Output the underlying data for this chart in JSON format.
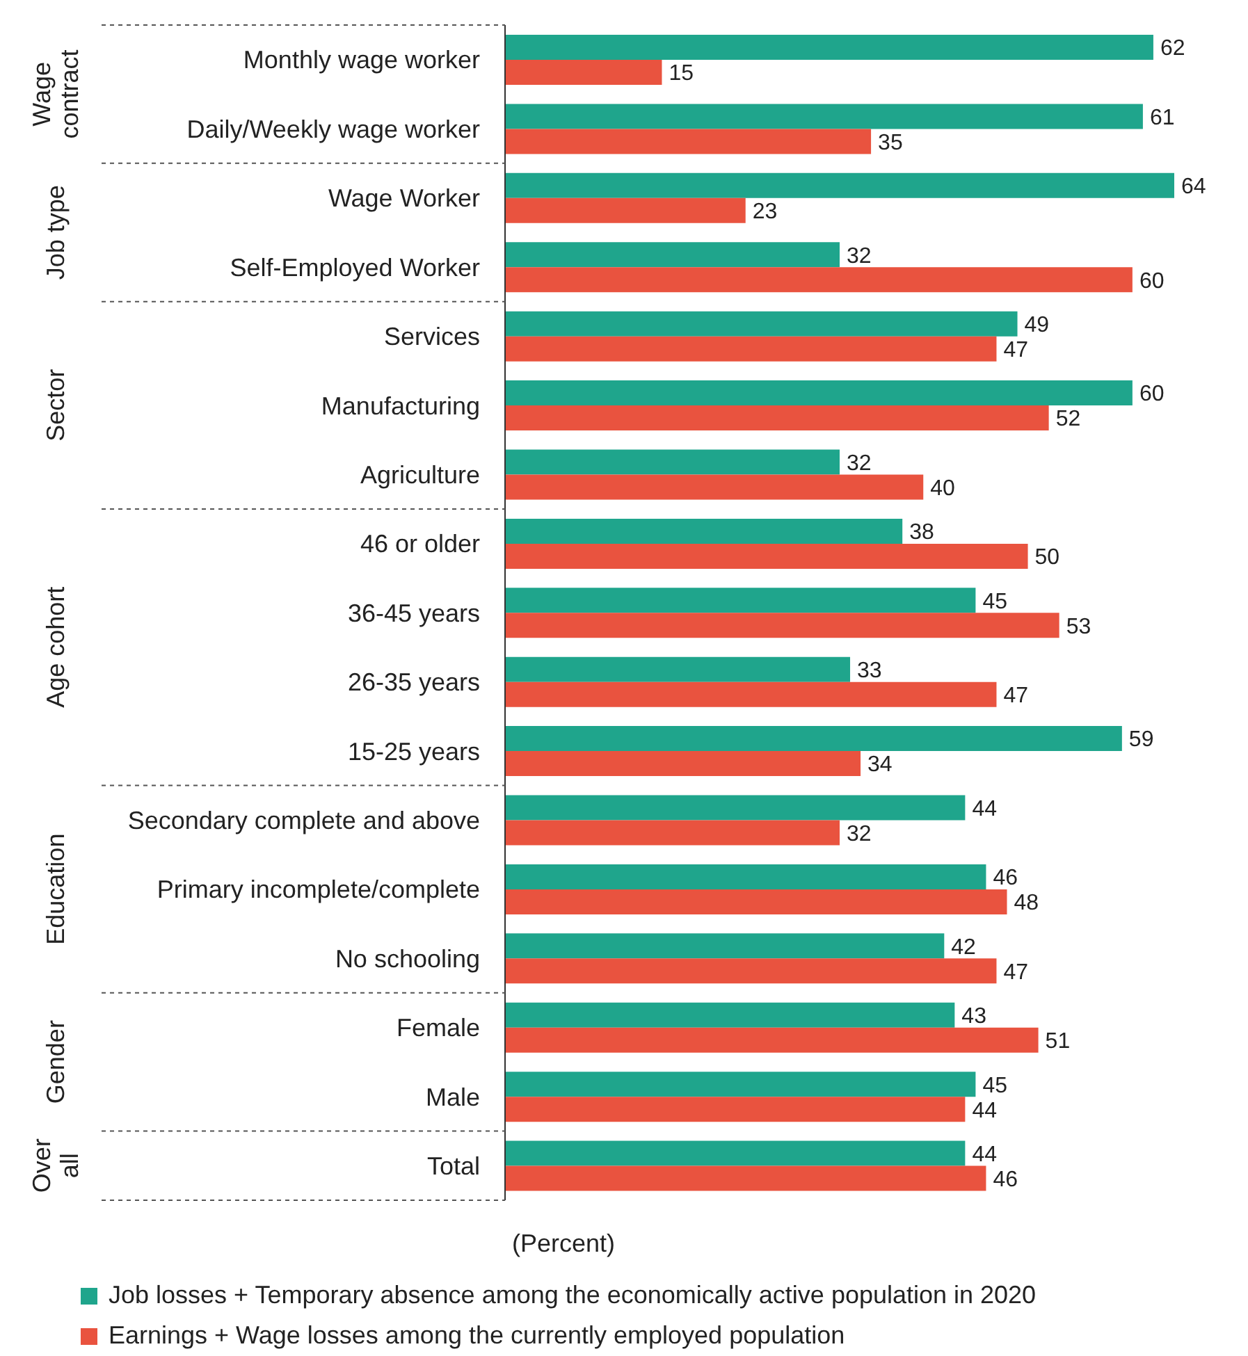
{
  "chart_data": {
    "type": "bar",
    "orientation": "horizontal",
    "xlabel": "(Percent)",
    "data_labels": true,
    "legend": "bottom",
    "categories": [
      "Monthly wage worker",
      "Daily/Weekly wage worker",
      "Wage Worker",
      "Self-Employed Worker",
      "Services",
      "Manufacturing",
      "Agriculture",
      "46 or older",
      "36-45 years",
      "26-35 years",
      "15-25 years",
      "Secondary complete and above",
      "Primary incomplete/complete",
      "No schooling",
      "Female",
      "Male",
      "Total"
    ],
    "annotations": [
      "Wage contract",
      "Job type",
      "Sector",
      "Age cohort",
      "Education",
      "Gender",
      "Over all"
    ],
    "series": [
      {
        "name": "Job losses + Temporary absence among the economically active population in 2020",
        "color": "#1fa58c",
        "values": [
          62,
          61,
          64,
          32,
          49,
          60,
          32,
          38,
          45,
          33,
          59,
          44,
          46,
          42,
          43,
          45,
          44
        ]
      },
      {
        "name": "Earnings + Wage losses among the currently employed population",
        "color": "#e9533f",
        "values": [
          15,
          35,
          23,
          60,
          47,
          52,
          40,
          50,
          53,
          47,
          34,
          32,
          48,
          47,
          51,
          44,
          46
        ]
      }
    ]
  }
}
